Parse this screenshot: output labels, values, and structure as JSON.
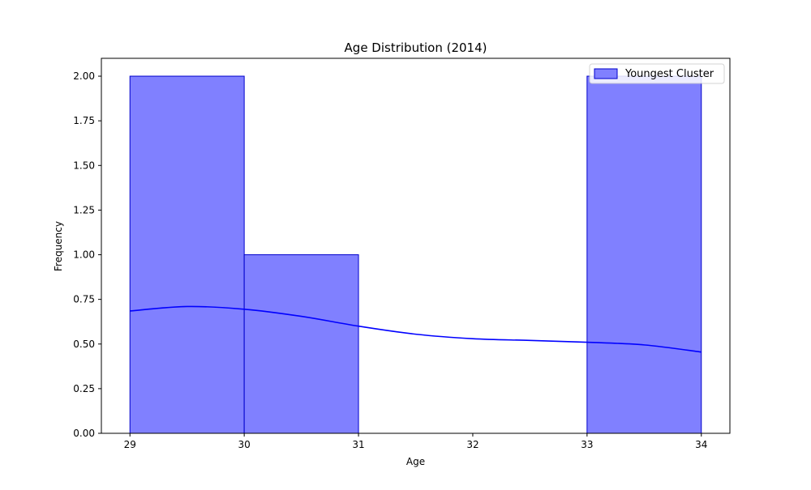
{
  "chart_data": {
    "type": "bar",
    "title": "Age Distribution (2014)",
    "xlabel": "Age",
    "ylabel": "Frequency",
    "xlim": [
      28.75,
      34.25
    ],
    "ylim": [
      0,
      2.1
    ],
    "xticks": [
      29,
      30,
      31,
      32,
      33,
      34
    ],
    "xtick_labels": [
      "29",
      "30",
      "31",
      "32",
      "33",
      "34"
    ],
    "yticks": [
      0,
      0.25,
      0.5,
      0.75,
      1.0,
      1.25,
      1.5,
      1.75,
      2.0
    ],
    "ytick_labels": [
      "0.00",
      "0.25",
      "0.50",
      "0.75",
      "1.00",
      "1.25",
      "1.50",
      "1.75",
      "2.00"
    ],
    "grid": false,
    "legend_position": "top-right",
    "series": [
      {
        "name": "Youngest Cluster",
        "kind": "histogram",
        "bins": [
          {
            "x0": 29,
            "x1": 30,
            "count": 2
          },
          {
            "x0": 30,
            "x1": 31,
            "count": 1
          },
          {
            "x0": 31,
            "x1": 32,
            "count": 0
          },
          {
            "x0": 32,
            "x1": 33,
            "count": 0
          },
          {
            "x0": 33,
            "x1": 34,
            "count": 2
          }
        ],
        "fill_color": "#8080ff",
        "edge_color": "#0000cc"
      },
      {
        "kind": "kde",
        "color": "#0000ff",
        "x": [
          29.0,
          29.5,
          30.0,
          30.5,
          31.0,
          31.5,
          32.0,
          32.5,
          33.0,
          33.5,
          34.0
        ],
        "y": [
          0.685,
          0.71,
          0.695,
          0.655,
          0.6,
          0.555,
          0.53,
          0.52,
          0.51,
          0.495,
          0.455
        ]
      }
    ]
  }
}
